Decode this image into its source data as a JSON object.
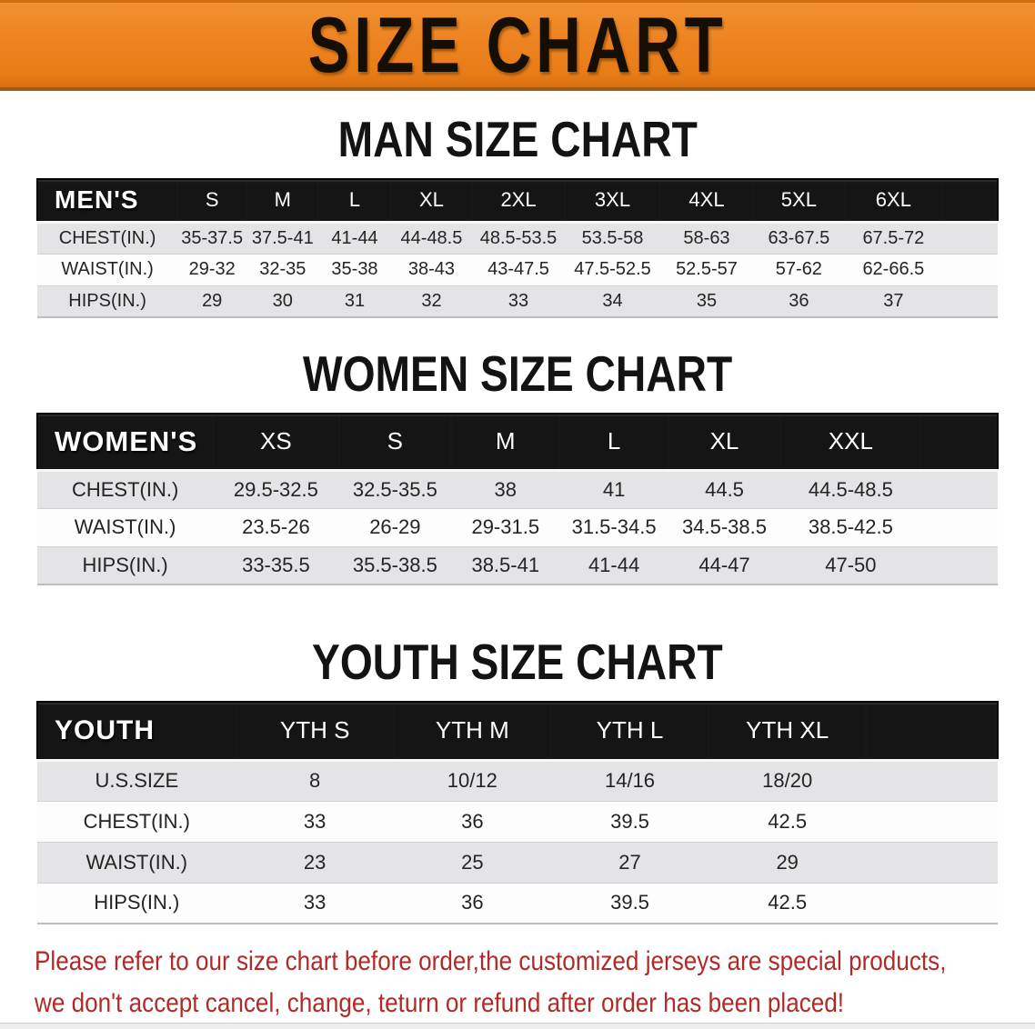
{
  "banner": {
    "title": "SIZE CHART",
    "bg_color": "#ed8320",
    "text_color": "#150e05"
  },
  "sections": [
    {
      "key": "men",
      "heading": "MAN SIZE CHART",
      "table": {
        "group_label": "MEN'S",
        "size_headers": [
          "S",
          "M",
          "L",
          "XL",
          "2XL",
          "3XL",
          "4XL",
          "5XL",
          "6XL"
        ],
        "rows": [
          {
            "label": "CHEST(IN.)",
            "values": [
              "35-37.5",
              "37.5-41",
              "41-44",
              "44-48.5",
              "48.5-53.5",
              "53.5-58",
              "58-63",
              "63-67.5",
              "67.5-72"
            ]
          },
          {
            "label": "WAIST(IN.)",
            "values": [
              "29-32",
              "32-35",
              "35-38",
              "38-43",
              "43-47.5",
              "47.5-52.5",
              "52.5-57",
              "57-62",
              "62-66.5"
            ]
          },
          {
            "label": "HIPS(IN.)",
            "values": [
              "29",
              "30",
              "31",
              "32",
              "33",
              "34",
              "35",
              "36",
              "37"
            ]
          }
        ]
      }
    },
    {
      "key": "women",
      "heading": "WOMEN SIZE CHART",
      "table": {
        "group_label": "WOMEN'S",
        "size_headers": [
          "XS",
          "S",
          "M",
          "L",
          "XL",
          "XXL"
        ],
        "rows": [
          {
            "label": "CHEST(IN.)",
            "values": [
              "29.5-32.5",
              "32.5-35.5",
              "38",
              "41",
              "44.5",
              "44.5-48.5"
            ]
          },
          {
            "label": "WAIST(IN.)",
            "values": [
              "23.5-26",
              "26-29",
              "29-31.5",
              "31.5-34.5",
              "34.5-38.5",
              "38.5-42.5"
            ]
          },
          {
            "label": "HIPS(IN.)",
            "values": [
              "33-35.5",
              "35.5-38.5",
              "38.5-41",
              "41-44",
              "44-47",
              "47-50"
            ]
          }
        ]
      }
    },
    {
      "key": "youth",
      "heading": "YOUTH SIZE CHART",
      "table": {
        "group_label": "YOUTH",
        "size_headers": [
          "YTH S",
          "YTH M",
          "YTH L",
          "YTH XL"
        ],
        "rows": [
          {
            "label": "U.S.SIZE",
            "values": [
              "8",
              "10/12",
              "14/16",
              "18/20"
            ]
          },
          {
            "label": "CHEST(IN.)",
            "values": [
              "33",
              "36",
              "39.5",
              "42.5"
            ]
          },
          {
            "label": "WAIST(IN.)",
            "values": [
              "23",
              "25",
              "27",
              "29"
            ]
          },
          {
            "label": "HIPS(IN.)",
            "values": [
              "33",
              "36",
              "39.5",
              "42.5"
            ]
          }
        ]
      }
    }
  ],
  "disclaimer": {
    "text_color": "#b02b28",
    "lines": [
      "Please refer to our size chart before order,the customized jerseys are special products,",
      "we don't accept cancel, change, teturn or refund after order has been placed!"
    ]
  }
}
